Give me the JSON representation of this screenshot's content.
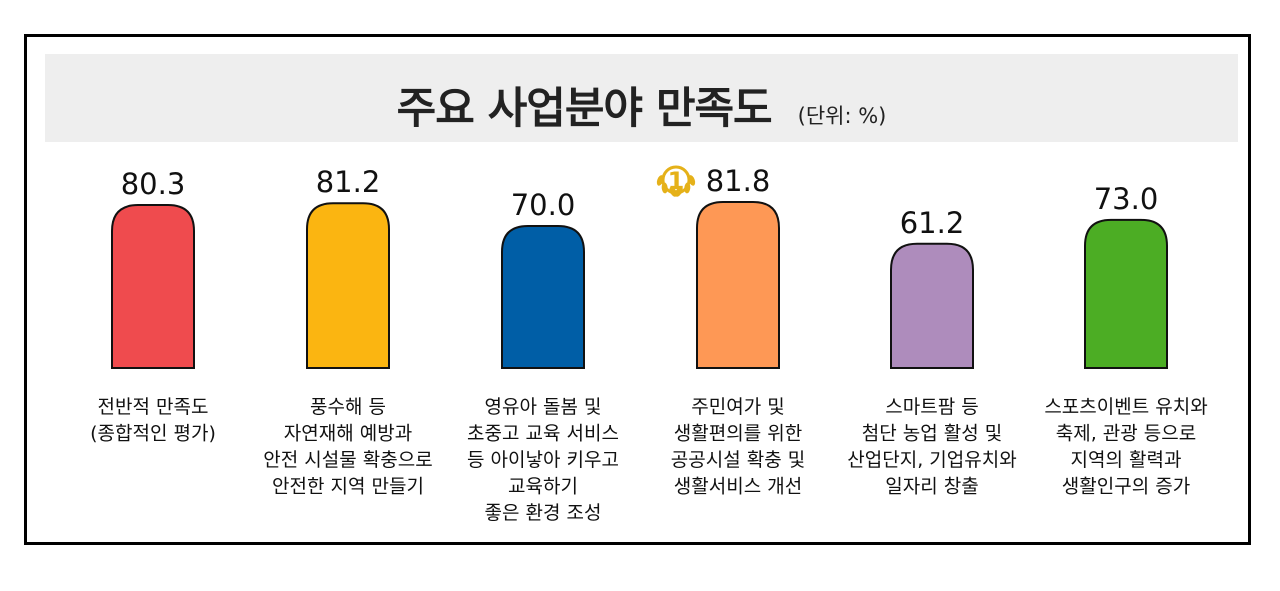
{
  "chart_data": {
    "type": "bar",
    "title": "주요 사업분야 만족도",
    "unit_label": "(단위: %)",
    "categories": [
      [
        "전반적 만족도",
        "(종합적인 평가)"
      ],
      [
        "풍수해 등",
        "자연재해 예방과",
        "안전 시설물 확충으로",
        "안전한 지역 만들기"
      ],
      [
        "영유아 돌봄 및",
        "초중고 교육 서비스",
        "등 아이낳아 키우고",
        "교육하기",
        "좋은 환경 조성"
      ],
      [
        "주민여가 및",
        "생활편의를 위한",
        "공공시설 확충 및",
        "생활서비스 개선"
      ],
      [
        "스마트팜 등",
        "첨단 농업 활성 및",
        "산업단지, 기업유치와",
        "일자리 창출"
      ],
      [
        "스포츠이벤트 유치와",
        "축제, 관광 등으로",
        "지역의 활력과",
        "생활인구의 증가"
      ]
    ],
    "values": [
      80.3,
      81.2,
      70.0,
      81.8,
      61.2,
      73.0
    ],
    "value_labels": [
      "80.3",
      "81.2",
      "70.0",
      "81.8",
      "61.2",
      "73.0"
    ],
    "colors": [
      "#ef4b4e",
      "#fbb511",
      "#005ea6",
      "#fe9855",
      "#ae8cbc",
      "#4cad24"
    ],
    "rank_badge": {
      "index": 3,
      "text": "1",
      "color": "#e5b119"
    },
    "ylim": [
      0,
      100
    ],
    "grid": false,
    "legend": "none"
  }
}
